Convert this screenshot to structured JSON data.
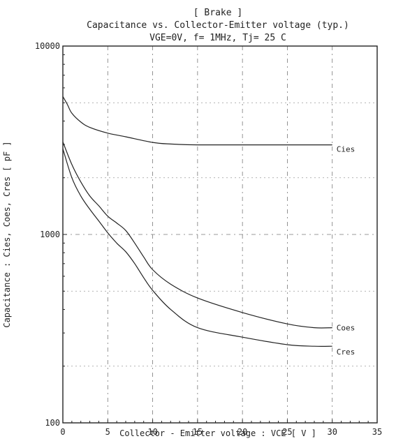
{
  "chart_data": {
    "type": "line",
    "title_lines": [
      "[ Brake ]",
      "Capacitance  vs.  Collector-Emitter voltage  (typ.)",
      "VGE=0V,   f= 1MHz,   Tj= 25 C"
    ],
    "xlabel": "Collector - Emitter voltage  :  VCE  [ V ]",
    "ylabel": "Capacitance  :  Cies, Coes, Cres  [ pF ]",
    "xlim": [
      0,
      35
    ],
    "ylim": [
      100,
      10000
    ],
    "yscale": "log",
    "x_ticks": [
      "0",
      "5",
      "10",
      "15",
      "20",
      "25",
      "30",
      "35"
    ],
    "y_ticks": [
      "100",
      "1000",
      "10000"
    ],
    "grid": true,
    "series": [
      {
        "name": "Cies",
        "x": [
          0,
          0.5,
          1,
          2,
          3,
          5,
          7,
          10,
          12,
          15,
          20,
          25,
          30
        ],
        "y": [
          5400,
          4900,
          4400,
          3950,
          3700,
          3450,
          3300,
          3080,
          3020,
          2990,
          2990,
          2990,
          2990
        ]
      },
      {
        "name": "Coes",
        "x": [
          0,
          1,
          2,
          3,
          4,
          5,
          6,
          7,
          8,
          9,
          10,
          12,
          15,
          20,
          25,
          28,
          30
        ],
        "y": [
          3100,
          2350,
          1900,
          1600,
          1420,
          1250,
          1150,
          1050,
          900,
          760,
          650,
          545,
          460,
          385,
          335,
          320,
          320
        ]
      },
      {
        "name": "Cres",
        "x": [
          0,
          1,
          2,
          3,
          4,
          5,
          6,
          7,
          8,
          9,
          10,
          12,
          15,
          20,
          25,
          28,
          30
        ],
        "y": [
          2850,
          2000,
          1600,
          1360,
          1180,
          1020,
          900,
          810,
          700,
          590,
          505,
          400,
          320,
          285,
          260,
          255,
          255
        ]
      }
    ]
  }
}
